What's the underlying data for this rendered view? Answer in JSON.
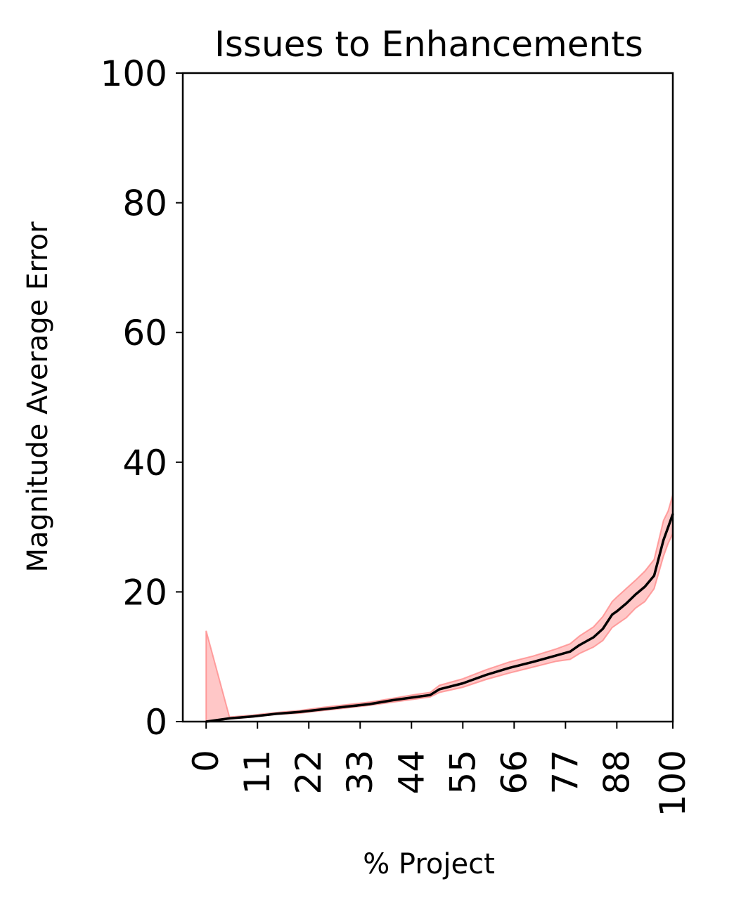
{
  "chart_data": {
    "type": "line",
    "title": "Issues to Enhancements",
    "xlabel": "% Project",
    "ylabel": "Magnitude Average Error",
    "xlim": [
      -5,
      100
    ],
    "ylim": [
      0,
      100
    ],
    "xticks": [
      0,
      11,
      22,
      33,
      44,
      55,
      66,
      77,
      88,
      100
    ],
    "yticks": [
      0,
      20,
      40,
      60,
      80,
      100
    ],
    "grid": false,
    "colors": {
      "mean_line": "#000000",
      "band": "#ff7f7f",
      "band_fill": "#ff9999"
    },
    "series": [
      {
        "x": [
          0,
          5,
          10,
          15,
          20,
          25,
          30,
          35,
          40,
          45,
          48,
          50,
          55,
          60,
          65,
          70,
          75,
          78,
          80,
          83,
          85,
          87,
          88,
          90,
          92,
          94,
          96,
          98,
          99,
          100
        ],
        "y": [
          0.0,
          0.5,
          0.8,
          1.2,
          1.5,
          1.9,
          2.3,
          2.7,
          3.3,
          3.8,
          4.1,
          5.0,
          5.9,
          7.2,
          8.3,
          9.2,
          10.2,
          10.8,
          11.8,
          13.0,
          14.3,
          16.5,
          17.0,
          18.2,
          19.6,
          20.8,
          22.5,
          28.0,
          30.0,
          32.0
        ],
        "lower": [
          0.0,
          0.4,
          0.7,
          1.1,
          1.3,
          1.7,
          2.1,
          2.5,
          3.0,
          3.5,
          3.8,
          4.5,
          5.3,
          6.5,
          7.5,
          8.4,
          9.3,
          9.6,
          10.5,
          11.5,
          12.5,
          14.5,
          15.0,
          16.0,
          17.5,
          18.5,
          20.5,
          25.5,
          27.5,
          29.0
        ],
        "upper": [
          14.0,
          0.7,
          1.0,
          1.4,
          1.7,
          2.2,
          2.6,
          3.0,
          3.6,
          4.2,
          4.5,
          5.6,
          6.6,
          8.0,
          9.2,
          10.1,
          11.2,
          12.0,
          13.2,
          14.6,
          16.2,
          18.5,
          19.2,
          20.5,
          21.8,
          23.2,
          25.0,
          31.0,
          32.5,
          35.0
        ]
      }
    ]
  }
}
